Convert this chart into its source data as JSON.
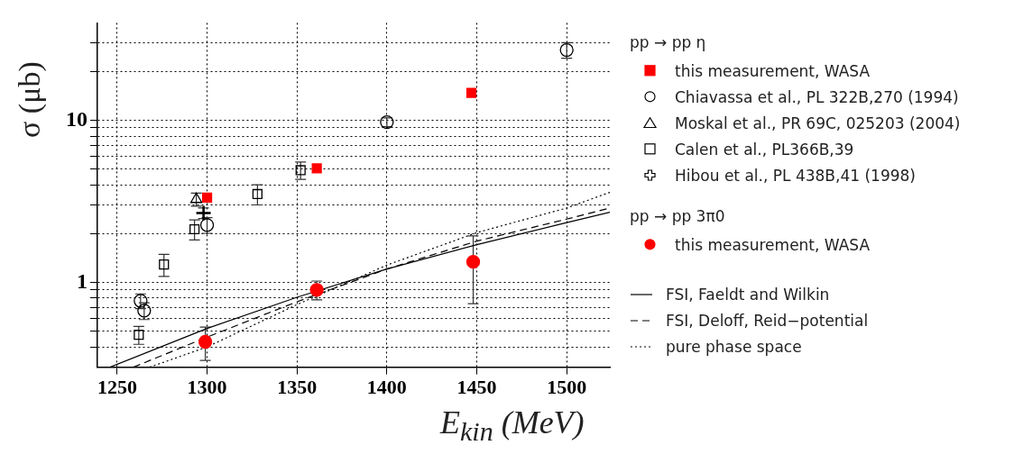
{
  "chart_data": {
    "type": "scatter",
    "xlabel": "E$_{kin}$ (MeV)",
    "ylabel": "σ (μb)",
    "log": "y",
    "grid": true,
    "legend": "right",
    "annotations": [
      "pp → pp η",
      "pp → pp 3π0"
    ],
    "xlim": [
      1239,
      1524
    ],
    "xticks": [
      1250,
      1300,
      1350,
      1400,
      1450,
      1500
    ],
    "ylim": [
      0.3,
      40
    ],
    "yticks": [
      {
        "value": 0.4,
        "label": null
      },
      {
        "value": 0.5,
        "label": null
      },
      {
        "value": 0.6,
        "label": null
      },
      {
        "value": 0.7,
        "label": null
      },
      {
        "value": 0.8,
        "label": null
      },
      {
        "value": 0.9,
        "label": null
      },
      1,
      {
        "value": 2,
        "label": null
      },
      {
        "value": 3,
        "label": null
      },
      {
        "value": 4,
        "label": null
      },
      {
        "value": 5,
        "label": null
      },
      {
        "value": 6,
        "label": null
      },
      {
        "value": 7,
        "label": null
      },
      {
        "value": 8,
        "label": null
      },
      {
        "value": 9,
        "label": null
      },
      10,
      {
        "value": 20,
        "label": null
      },
      {
        "value": 30,
        "label": null
      }
    ],
    "series": [
      {
        "type": "scatter",
        "name": "this measurement, WASA",
        "color": "#ff0000",
        "marker": "square",
        "x": [
          1300,
          1361,
          1447
        ],
        "values": [
          3.34,
          5.06,
          14.8
        ]
      },
      {
        "type": "scatter",
        "name": "Chiavassa et al., PL 322B,270 (1994)",
        "color": "#000000",
        "marker": "circle",
        "x": [
          1263,
          1265,
          1300,
          1400,
          1500
        ],
        "values": [
          0.77,
          0.67,
          2.26,
          9.76,
          27.2
        ],
        "errors": [
          0.08,
          0.08,
          0.25,
          0.6,
          3
        ]
      },
      {
        "type": "scatter",
        "name": "Moskal et al., PR 69C, 025203 (2004)",
        "color": "#000000",
        "marker": "triangle",
        "x": [
          1294
        ],
        "values": [
          3.26
        ],
        "errors": [
          0.3
        ]
      },
      {
        "type": "scatter",
        "name": "Calen et al., PL366B,39",
        "color": "#000000",
        "marker": "square",
        "x": [
          1262,
          1276,
          1293,
          1328,
          1352
        ],
        "values": [
          0.475,
          1.29,
          2.13,
          3.51,
          4.93
        ],
        "errors": [
          0.06,
          0.2,
          0.3,
          0.5,
          0.6
        ]
      },
      {
        "type": "scatter",
        "name": "Hibou et al., PL 438B,41 (1998)",
        "color": "#000000",
        "marker": "cross",
        "x": [
          1298
        ],
        "values": [
          2.68
        ],
        "errors": [
          0.2
        ]
      },
      {
        "type": "scatter",
        "name": "this measurement, WASA",
        "color": "#ff0000",
        "marker": "circle",
        "x": [
          1299,
          1361,
          1448
        ],
        "values": [
          0.43,
          0.9,
          1.34
        ],
        "errors": [
          0.1,
          0.12,
          0.6
        ]
      },
      {
        "type": "line",
        "name": "FSI, Faeldt and Wilkin",
        "color": "#000000",
        "line_style": "solid",
        "x": [
          1246,
          1300,
          1350,
          1400,
          1450,
          1500,
          1524
        ],
        "values": [
          0.3,
          0.52,
          0.81,
          1.21,
          1.71,
          2.34,
          2.71
        ]
      },
      {
        "type": "line",
        "name": "FSI, Deloff, Reid−potential",
        "color": "#000000",
        "line_style": "dashed",
        "x": [
          1259,
          1300,
          1350,
          1400,
          1450,
          1500,
          1524
        ],
        "values": [
          0.3,
          0.46,
          0.76,
          1.21,
          1.8,
          2.46,
          2.88
        ]
      },
      {
        "type": "line",
        "name": "pure phase space",
        "color": "#000000",
        "line_style": "dotted",
        "x": [
          1268,
          1300,
          1350,
          1400,
          1450,
          1500,
          1524
        ],
        "values": [
          0.3,
          0.4,
          0.73,
          1.28,
          2.03,
          2.88,
          3.6
        ]
      }
    ]
  }
}
